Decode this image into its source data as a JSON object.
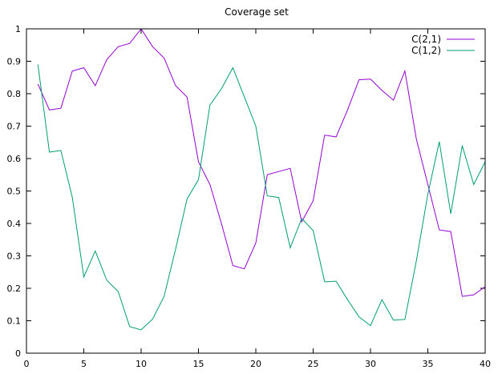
{
  "chart_data": {
    "type": "line",
    "title": "Coverage set",
    "xlabel": "",
    "ylabel": "",
    "xlim": [
      0,
      40
    ],
    "ylim": [
      0,
      1
    ],
    "x_ticks": [
      0,
      5,
      10,
      15,
      20,
      25,
      30,
      35,
      40
    ],
    "y_ticks": [
      0,
      0.1,
      0.2,
      0.3,
      0.4,
      0.5,
      0.6,
      0.7,
      0.8,
      0.9,
      1
    ],
    "x_tick_labels": [
      "0",
      "5",
      "10",
      "15",
      "20",
      "25",
      "30",
      "35",
      "40"
    ],
    "y_tick_labels": [
      "0",
      "0.1",
      "0.2",
      "0.3",
      "0.4",
      "0.5",
      "0.6",
      "0.7",
      "0.8",
      "0.9",
      "1"
    ],
    "grid": false,
    "legend_position": "top-right",
    "x": [
      1,
      2,
      3,
      4,
      5,
      6,
      7,
      8,
      9,
      10,
      11,
      12,
      13,
      14,
      15,
      16,
      17,
      18,
      19,
      20,
      21,
      22,
      23,
      24,
      25,
      26,
      27,
      28,
      29,
      30,
      31,
      32,
      33,
      34,
      35,
      36,
      37,
      38,
      39,
      40
    ],
    "series": [
      {
        "name": "C(2,1)",
        "color": "#9400d3",
        "values": [
          0.83,
          0.75,
          0.755,
          0.87,
          0.88,
          0.825,
          0.905,
          0.945,
          0.955,
          1.0,
          0.945,
          0.91,
          0.825,
          0.79,
          0.59,
          0.52,
          0.4,
          0.27,
          0.26,
          0.34,
          0.55,
          0.56,
          0.57,
          0.405,
          0.47,
          0.672,
          0.667,
          0.75,
          0.843,
          0.845,
          0.81,
          0.78,
          0.87,
          0.66,
          0.52,
          0.38,
          0.375,
          0.175,
          0.18,
          0.205
        ]
      },
      {
        "name": "C(1,2)",
        "color": "#009e73",
        "values": [
          0.89,
          0.62,
          0.625,
          0.48,
          0.235,
          0.315,
          0.225,
          0.19,
          0.082,
          0.072,
          0.105,
          0.175,
          0.32,
          0.475,
          0.535,
          0.765,
          0.815,
          0.88,
          0.79,
          0.7,
          0.485,
          0.48,
          0.325,
          0.415,
          0.378,
          0.22,
          0.222,
          0.165,
          0.112,
          0.085,
          0.165,
          0.102,
          0.104,
          0.285,
          0.49,
          0.652,
          0.43,
          0.64,
          0.52,
          0.59
        ]
      }
    ]
  }
}
